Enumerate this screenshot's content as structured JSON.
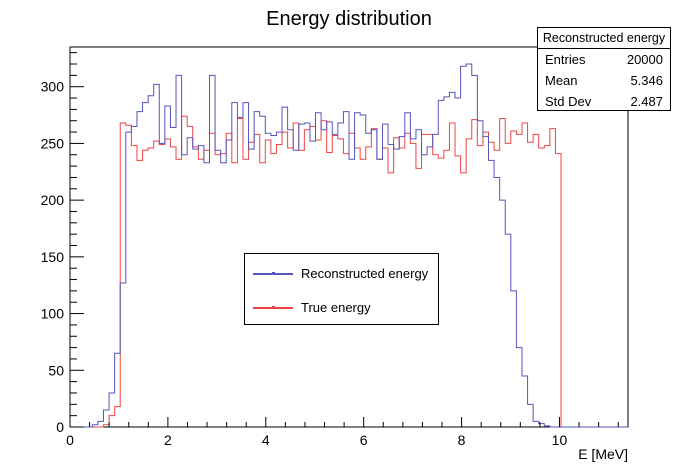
{
  "chart_data": {
    "type": "histogram",
    "title": "Energy distribution",
    "xlabel": "E [MeV]",
    "ylabel": "",
    "xlim": [
      0,
      11.4
    ],
    "ylim": [
      0,
      335
    ],
    "x_ticks": [
      0,
      2,
      4,
      6,
      8,
      10
    ],
    "y_ticks": [
      0,
      50,
      100,
      150,
      200,
      250,
      300
    ],
    "bin_width": 0.114,
    "series": [
      {
        "name": "Reconstructed energy",
        "color": "#5555bb",
        "values": [
          0,
          0,
          0,
          0,
          2,
          5,
          15,
          30,
          65,
          127,
          260,
          265,
          278,
          286,
          292,
          302,
          250,
          283,
          264,
          310,
          240,
          255,
          245,
          248,
          233,
          310,
          244,
          233,
          253,
          286,
          273,
          286,
          245,
          278,
          274,
          259,
          257,
          260,
          282,
          262,
          244,
          267,
          268,
          252,
          277,
          262,
          269,
          258,
          268,
          278,
          236,
          277,
          275,
          259,
          262,
          236,
          267,
          249,
          245,
          256,
          277,
          254,
          262,
          240,
          247,
          258,
          288,
          291,
          295,
          290,
          318,
          320,
          310,
          270,
          256,
          235,
          220,
          200,
          170,
          120,
          70,
          45,
          20,
          5,
          3,
          1,
          0,
          0,
          0,
          0,
          0,
          0,
          0,
          0,
          0,
          0,
          0,
          0,
          0,
          0
        ]
      },
      {
        "name": "True energy",
        "color": "#ee4444",
        "values": [
          0,
          0,
          0,
          0,
          0,
          0,
          2,
          10,
          18,
          268,
          266,
          248,
          235,
          244,
          246,
          252,
          249,
          254,
          247,
          236,
          274,
          265,
          247,
          236,
          244,
          259,
          240,
          241,
          259,
          233,
          272,
          236,
          251,
          258,
          233,
          253,
          241,
          249,
          260,
          246,
          268,
          244,
          262,
          265,
          253,
          270,
          242,
          257,
          254,
          241,
          259,
          246,
          236,
          247,
          263,
          236,
          246,
          224,
          255,
          246,
          259,
          250,
          228,
          258,
          258,
          240,
          237,
          244,
          268,
          239,
          224,
          254,
          271,
          248,
          260,
          251,
          244,
          272,
          250,
          261,
          258,
          268,
          251,
          258,
          246,
          248,
          263,
          241,
          0,
          0,
          0,
          0,
          0,
          0,
          0,
          0,
          0,
          0,
          0,
          0
        ]
      }
    ],
    "legend_position": "center",
    "grid": false
  },
  "stats": {
    "title": "Reconstructed energy",
    "rows": [
      {
        "key": "Entries",
        "value": "20000"
      },
      {
        "key": "Mean",
        "value": "5.346"
      },
      {
        "key": "Std Dev",
        "value": "2.487"
      }
    ]
  }
}
